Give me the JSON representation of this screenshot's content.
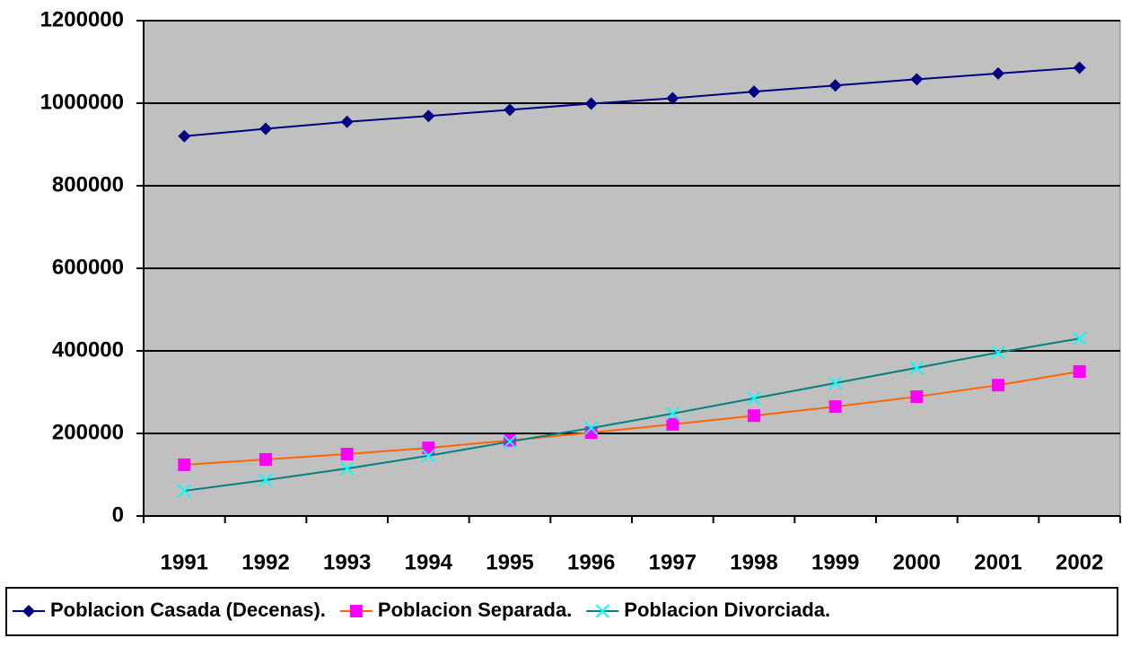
{
  "chart_data": {
    "type": "line",
    "categories": [
      "1991",
      "1992",
      "1993",
      "1994",
      "1995",
      "1996",
      "1997",
      "1998",
      "1999",
      "2000",
      "2001",
      "2002"
    ],
    "series": [
      {
        "name": "Poblacion Casada (Decenas).",
        "color": "#000080",
        "marker_color": "#000080",
        "marker": "diamond",
        "values": [
          920000,
          938000,
          955000,
          969000,
          984000,
          999000,
          1012000,
          1028000,
          1043000,
          1058000,
          1072000,
          1086000
        ]
      },
      {
        "name": "Poblacion Separada.",
        "color": "#ff6600",
        "marker_color": "#ff00ff",
        "marker": "square",
        "values": [
          124000,
          137000,
          150000,
          165000,
          183000,
          202000,
          222000,
          243000,
          265000,
          289000,
          317000,
          350000
        ]
      },
      {
        "name": "Poblacion Divorciada.",
        "color": "#008080",
        "marker_color": "#00ffff",
        "marker": "x",
        "values": [
          61000,
          87000,
          115000,
          146000,
          180000,
          213000,
          248000,
          285000,
          322000,
          359000,
          396000,
          430000
        ]
      }
    ],
    "ylim": [
      0,
      1200000
    ],
    "yticks": [
      0,
      200000,
      400000,
      600000,
      800000,
      1000000,
      1200000
    ],
    "grid": true,
    "plot_background": "#c0c0c0",
    "legend": "bottom"
  }
}
